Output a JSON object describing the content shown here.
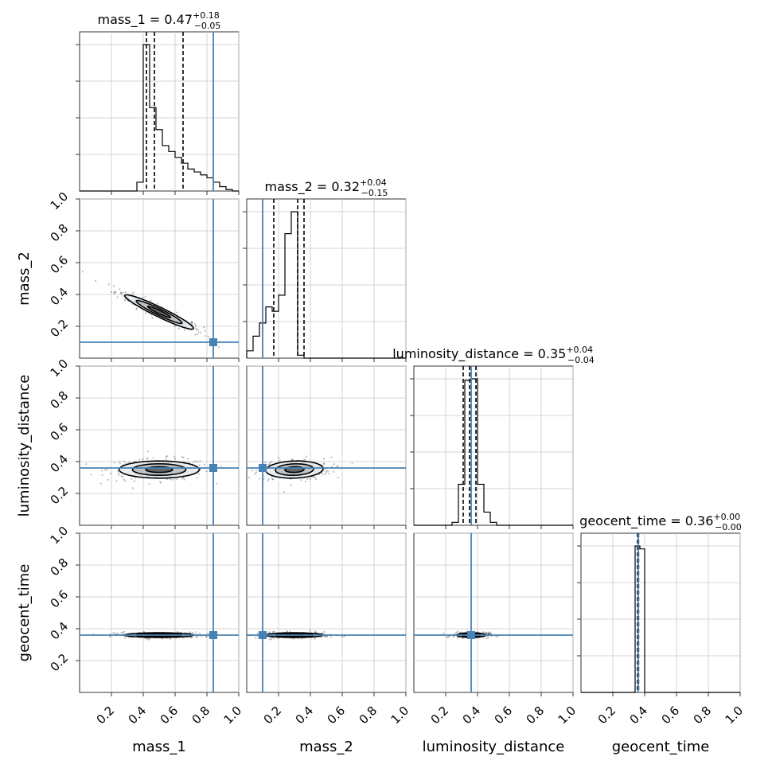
{
  "chart_data": {
    "type": "corner",
    "parameters": [
      "mass_1",
      "mass_2",
      "luminosity_distance",
      "geocent_time"
    ],
    "axis_range": [
      0,
      1
    ],
    "tick_labels": [
      "0.2",
      "0.4",
      "0.6",
      "0.8",
      "1.0"
    ],
    "grid": true,
    "truth_color": "#4682b4",
    "truths": [
      0.84,
      0.1,
      0.36,
      0.36
    ],
    "titles": [
      {
        "prefix": "mass_1 = 0.47",
        "plus": "+0.18",
        "minus": "−0.05"
      },
      {
        "prefix": "mass_2 = 0.32",
        "plus": "+0.04",
        "minus": "−0.15"
      },
      {
        "prefix": "luminosity_distance = 0.35",
        "plus": "+0.04",
        "minus": "−0.04"
      },
      {
        "prefix": "geocent_time = 0.36",
        "plus": "+0.00",
        "minus": "−0.00"
      }
    ],
    "quantiles": [
      [
        0.42,
        0.47,
        0.65
      ],
      [
        0.17,
        0.32,
        0.36
      ],
      [
        0.31,
        0.35,
        0.39
      ],
      [
        0.355,
        0.36,
        0.362
      ]
    ],
    "histograms": [
      {
        "edges": [
          0.0,
          0.04,
          0.08,
          0.12,
          0.16,
          0.2,
          0.24,
          0.28,
          0.32,
          0.36,
          0.4,
          0.44,
          0.48,
          0.52,
          0.56,
          0.6,
          0.64,
          0.68,
          0.72,
          0.76,
          0.8,
          0.84,
          0.88,
          0.92,
          0.96,
          1.0
        ],
        "counts": [
          0,
          0,
          0,
          0,
          0,
          0,
          0,
          0,
          0,
          0.06,
          1.0,
          0.57,
          0.42,
          0.31,
          0.27,
          0.23,
          0.19,
          0.15,
          0.13,
          0.11,
          0.09,
          0.06,
          0.03,
          0.01,
          0,
          0
        ]
      },
      {
        "edges": [
          0.0,
          0.04,
          0.08,
          0.12,
          0.16,
          0.2,
          0.24,
          0.28,
          0.32,
          0.36,
          0.4,
          0.44,
          0.48,
          0.52,
          0.56,
          0.6,
          0.64,
          0.68,
          0.72,
          0.76,
          0.8,
          0.84,
          0.88,
          0.92,
          0.96,
          1.0
        ],
        "counts": [
          0.05,
          0.15,
          0.24,
          0.35,
          0.32,
          0.43,
          0.85,
          1.0,
          0.02,
          0,
          0,
          0,
          0,
          0,
          0,
          0,
          0,
          0,
          0,
          0,
          0,
          0,
          0,
          0,
          0
        ]
      },
      {
        "edges": [
          0.0,
          0.04,
          0.08,
          0.12,
          0.16,
          0.2,
          0.24,
          0.28,
          0.32,
          0.36,
          0.4,
          0.44,
          0.48,
          0.52,
          0.56,
          0.6,
          0.64,
          0.68,
          0.72,
          0.76,
          0.8,
          0.84,
          0.88,
          0.92,
          0.96,
          1.0
        ],
        "counts": [
          0,
          0,
          0,
          0,
          0,
          0,
          0.02,
          0.28,
          0.99,
          1.0,
          0.28,
          0.09,
          0.02,
          0,
          0,
          0,
          0,
          0,
          0,
          0,
          0,
          0,
          0,
          0,
          0
        ]
      },
      {
        "edges": [
          0.0,
          0.04,
          0.08,
          0.12,
          0.16,
          0.2,
          0.24,
          0.28,
          0.32,
          0.34,
          0.37,
          0.4,
          0.44,
          0.48,
          0.52,
          0.56,
          0.6,
          0.64,
          0.68,
          0.72,
          0.76,
          0.8,
          0.84,
          0.88,
          0.92,
          0.96,
          1.0
        ],
        "counts": [
          0,
          0,
          0,
          0,
          0,
          0,
          0,
          0,
          0,
          1.0,
          0.98,
          0,
          0,
          0,
          0,
          0,
          0,
          0,
          0,
          0,
          0,
          0,
          0,
          0,
          0,
          0
        ]
      }
    ],
    "contours": {
      "1-0": {
        "mean": [
          0.5,
          0.29
        ],
        "sd": [
          0.12,
          0.06
        ],
        "rho": -0.95
      },
      "2-0": {
        "mean": [
          0.5,
          0.35
        ],
        "sd": [
          0.14,
          0.03
        ],
        "rho": 0.0
      },
      "2-1": {
        "mean": [
          0.3,
          0.35
        ],
        "sd": [
          0.1,
          0.03
        ],
        "rho": 0.1
      },
      "3-0": {
        "mean": [
          0.5,
          0.36
        ],
        "sd": [
          0.12,
          0.008
        ],
        "rho": 0.0
      },
      "3-1": {
        "mean": [
          0.3,
          0.36
        ],
        "sd": [
          0.1,
          0.008
        ],
        "rho": 0.0
      },
      "3-2": {
        "mean": [
          0.36,
          0.36
        ],
        "sd": [
          0.05,
          0.008
        ],
        "rho": 0.0
      }
    }
  }
}
